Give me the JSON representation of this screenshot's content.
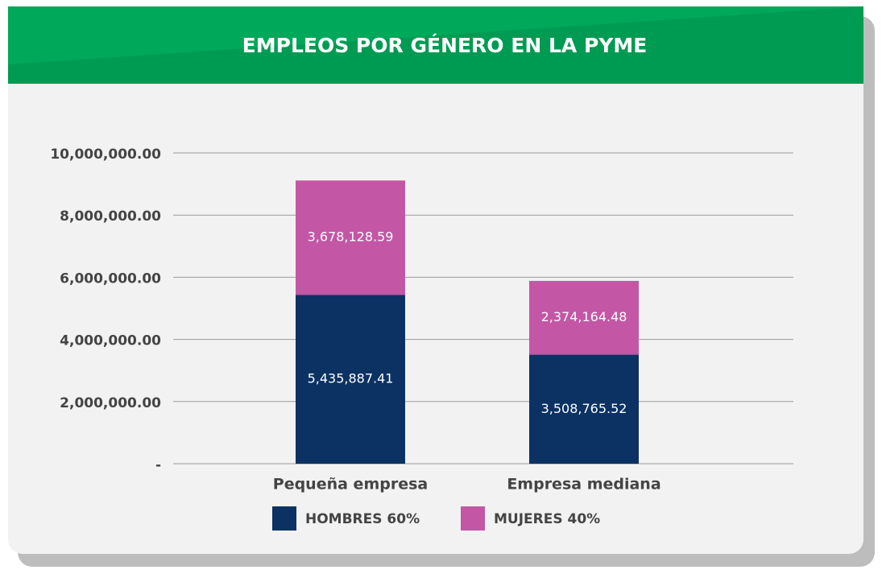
{
  "chart_data": {
    "type": "stacked_bar",
    "title": "EMPLEOS POR GÉNERO EN LA PYME",
    "categories": [
      "Pequeña empresa",
      "Empresa mediana"
    ],
    "series": [
      {
        "name": "HOMBRES 60%",
        "color": "#0b3263",
        "values": [
          5435887.41,
          3508765.52
        ],
        "value_labels": [
          "5,435,887.41",
          "3,508,765.52"
        ]
      },
      {
        "name": "MUJERES 40%",
        "color": "#c456a6",
        "values": [
          3678128.59,
          2374164.48
        ],
        "value_labels": [
          "3,678,128.59",
          "2,374,164.48"
        ]
      }
    ],
    "ylim": [
      0,
      10000000
    ],
    "yticks": [
      {
        "value": 0,
        "label": "-"
      },
      {
        "value": 2000000,
        "label": "2,000,000.00"
      },
      {
        "value": 4000000,
        "label": "4,000,000.00"
      },
      {
        "value": 6000000,
        "label": "6,000,000.00"
      },
      {
        "value": 8000000,
        "label": "8,000,000.00"
      },
      {
        "value": 10000000,
        "label": "10,000,000.00"
      }
    ],
    "grid": true,
    "legend": "bottom"
  }
}
